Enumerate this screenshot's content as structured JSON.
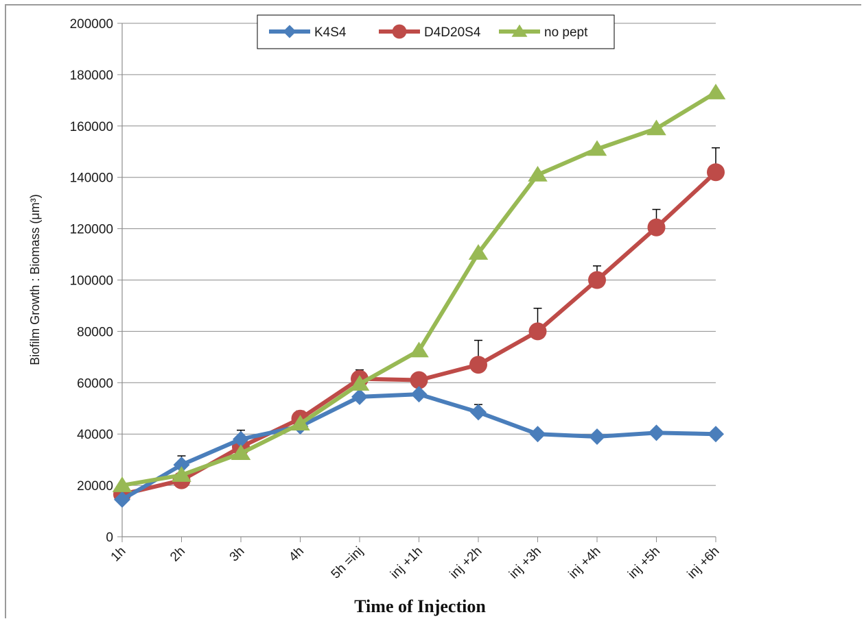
{
  "chart_data": {
    "type": "line",
    "title": "",
    "xlabel": "Time of Injection",
    "ylabel": "Biofilm Growth  : Biomass (μm³)",
    "categories": [
      "1h",
      "2h",
      "3h",
      "4h",
      "5h =inj",
      "inj +1h",
      "inj +2h",
      "inj +3h",
      "inj +4h",
      "inj +5h",
      "inj +6h"
    ],
    "ylim": [
      0,
      200000
    ],
    "yticks": [
      0,
      20000,
      40000,
      60000,
      80000,
      100000,
      120000,
      140000,
      160000,
      180000,
      200000
    ],
    "grid": "horizontal",
    "legend_position": "top",
    "series": [
      {
        "name": "K4S4",
        "color": "#4a7ebb",
        "marker": "diamond",
        "values": [
          14500,
          28000,
          38000,
          43000,
          54500,
          55500,
          48500,
          40000,
          39000,
          40500,
          40000
        ],
        "errors": [
          0,
          3500,
          3500,
          0,
          0,
          0,
          3000,
          0,
          0,
          0,
          0
        ]
      },
      {
        "name": "D4D20S4",
        "color": "#be4b48",
        "marker": "circle",
        "values": [
          16500,
          22000,
          35000,
          46000,
          61500,
          61000,
          67000,
          80000,
          100000,
          120500,
          142000
        ],
        "errors": [
          0,
          0,
          0,
          3000,
          3500,
          0,
          9500,
          9000,
          5500,
          7000,
          9500
        ]
      },
      {
        "name": "no pept",
        "color": "#98b954",
        "marker": "triangle",
        "values": [
          20000,
          24000,
          32500,
          44000,
          59500,
          72500,
          110500,
          141000,
          151000,
          159000,
          173000
        ],
        "errors": [
          0,
          0,
          0,
          0,
          0,
          0,
          0,
          0,
          0,
          0,
          0
        ]
      }
    ]
  }
}
